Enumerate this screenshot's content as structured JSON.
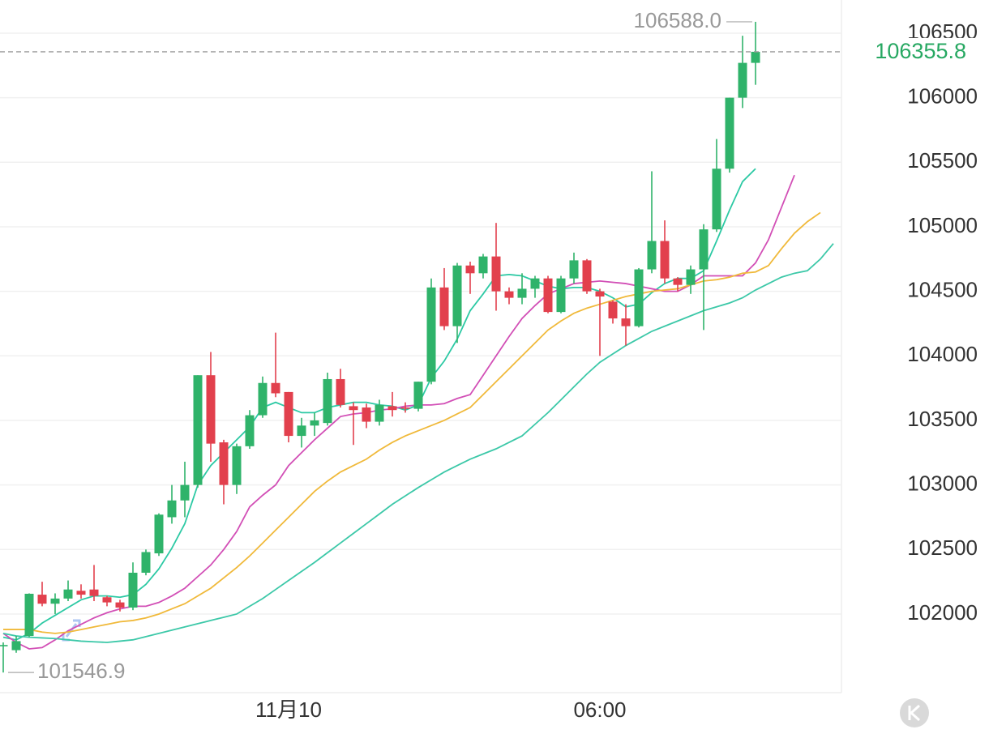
{
  "chart_data": {
    "type": "candlestick",
    "categories": [
      null,
      null,
      null,
      null,
      null,
      null,
      null,
      null,
      null,
      null,
      null,
      null,
      null,
      null,
      null,
      null,
      null,
      null,
      null,
      null,
      null,
      null,
      "11月10",
      null,
      null,
      null,
      null,
      null,
      null,
      null,
      null,
      null,
      null,
      null,
      null,
      null,
      null,
      null,
      null,
      null,
      null,
      null,
      null,
      null,
      null,
      null,
      "06:00",
      null,
      null,
      null,
      null,
      null,
      null,
      null,
      null,
      null,
      null,
      null,
      null,
      null,
      null,
      null,
      null,
      null,
      null
    ],
    "candles": {
      "open": [
        101750,
        101720,
        101830,
        102150,
        102080,
        102120,
        102180,
        102190,
        102130,
        102090,
        102050,
        102320,
        102470,
        102750,
        102880,
        103000,
        103850,
        103330,
        103000,
        103300,
        103540,
        103790,
        103720,
        103380,
        103460,
        103480,
        103820,
        103610,
        103600,
        103490,
        103610,
        103600,
        103590,
        103800,
        104530,
        104230,
        104700,
        104640,
        104770,
        104500,
        104450,
        104520,
        104600,
        104340,
        104600,
        104740,
        104500,
        104420,
        104290,
        104230,
        104670,
        104890,
        104600,
        104550,
        104670,
        104980,
        105450,
        106000,
        106270,
        null,
        null,
        null,
        null,
        null,
        null
      ],
      "high": [
        101780,
        101830,
        102160,
        102250,
        102160,
        102260,
        102230,
        102380,
        102140,
        102110,
        102400,
        102500,
        102780,
        103000,
        103180,
        103850,
        104030,
        103350,
        103320,
        103580,
        103840,
        104180,
        103720,
        103520,
        103560,
        103870,
        103900,
        103640,
        103630,
        103660,
        103720,
        103640,
        103800,
        104600,
        104680,
        104720,
        104730,
        104790,
        105030,
        104530,
        104640,
        104620,
        104620,
        104620,
        104800,
        104750,
        104520,
        104430,
        104400,
        104680,
        105430,
        105050,
        104610,
        104700,
        105020,
        105680,
        106000,
        106480,
        106588,
        null,
        null,
        null,
        null,
        null,
        null
      ],
      "low": [
        101546.9,
        101700,
        101820,
        102060,
        102000,
        102100,
        102120,
        102100,
        102060,
        102020,
        102030,
        102300,
        102450,
        102700,
        102750,
        102980,
        103180,
        102850,
        102930,
        103280,
        103520,
        103680,
        103330,
        103290,
        103380,
        103460,
        103600,
        103310,
        103440,
        103460,
        103530,
        103560,
        103570,
        103780,
        104200,
        104100,
        104480,
        104600,
        104350,
        104400,
        104400,
        104450,
        104330,
        104330,
        104560,
        104480,
        104000,
        104250,
        104080,
        104220,
        104640,
        104560,
        104500,
        104480,
        104200,
        104960,
        105420,
        105920,
        106100,
        null,
        null,
        null,
        null,
        null,
        null
      ],
      "close": [
        101760,
        101790,
        102157,
        102080,
        102120,
        102190,
        102150,
        102140,
        102090,
        102050,
        102320,
        102480,
        102770,
        102880,
        103000,
        103850,
        103320,
        103000,
        103300,
        103540,
        103790,
        103710,
        103380,
        103460,
        103500,
        103820,
        103620,
        103580,
        103490,
        103620,
        103580,
        103590,
        103800,
        104530,
        104230,
        104700,
        104640,
        104770,
        104500,
        104450,
        104520,
        104600,
        104340,
        104600,
        104740,
        104500,
        104460,
        104290,
        104230,
        104670,
        104890,
        104600,
        104550,
        104670,
        104980,
        105450,
        106000,
        106270,
        106355.8,
        null,
        null,
        null,
        null,
        null,
        null
      ]
    },
    "up_color": "#2fb36a",
    "down_color": "#e2404d",
    "series": [
      {
        "color": "#2cc9a4",
        "values": [
          101820,
          101800,
          101850,
          101930,
          101990,
          102050,
          102110,
          102140,
          102140,
          102130,
          102150,
          102230,
          102350,
          102510,
          102700,
          103000,
          103150,
          103250,
          103350,
          103450,
          103600,
          103640,
          103600,
          103560,
          103560,
          103600,
          103620,
          103640,
          103640,
          103620,
          103610,
          103580,
          103620,
          103830,
          103960,
          104130,
          104350,
          104480,
          104620,
          104630,
          104620,
          104580,
          104540,
          104520,
          104530,
          104530,
          104500,
          104450,
          104380,
          104400,
          104490,
          104560,
          104600,
          104600,
          104660,
          104890,
          105130,
          105350,
          105450,
          null,
          null,
          null,
          null,
          null,
          null
        ]
      },
      {
        "color": "#d24fb6",
        "values": [
          101850,
          101780,
          101730,
          101740,
          101800,
          101870,
          101920,
          101970,
          102010,
          102040,
          102060,
          102060,
          102090,
          102140,
          102200,
          102290,
          102380,
          102500,
          102640,
          102830,
          102920,
          103000,
          103150,
          103250,
          103350,
          103440,
          103530,
          103550,
          103560,
          103580,
          103590,
          103610,
          103620,
          103620,
          103630,
          103670,
          103700,
          103850,
          104000,
          104150,
          104290,
          104390,
          104480,
          104520,
          104560,
          104570,
          104580,
          104570,
          104560,
          104540,
          104520,
          104500,
          104500,
          104550,
          104620,
          104620,
          104620,
          104620,
          104720,
          104900,
          105150,
          105400,
          null,
          null,
          null
        ]
      },
      {
        "color": "#f0b93a",
        "values": [
          101880,
          101880,
          101880,
          101860,
          101850,
          101860,
          101880,
          101900,
          101920,
          101940,
          101950,
          101970,
          102000,
          102040,
          102080,
          102140,
          102200,
          102280,
          102360,
          102450,
          102550,
          102650,
          102750,
          102850,
          102950,
          103030,
          103100,
          103150,
          103200,
          103270,
          103330,
          103380,
          103420,
          103460,
          103500,
          103550,
          103600,
          103700,
          103800,
          103900,
          104000,
          104100,
          104200,
          104270,
          104330,
          104370,
          104400,
          104430,
          104460,
          104480,
          104500,
          104510,
          104520,
          104550,
          104580,
          104590,
          104610,
          104640,
          104650,
          104700,
          104830,
          104950,
          105040,
          105110,
          null
        ]
      },
      {
        "color": "#3cc8a8",
        "values": [
          101850,
          101830,
          101820,
          101815,
          101810,
          101800,
          101790,
          101785,
          101780,
          101790,
          101800,
          101825,
          101850,
          101875,
          101900,
          101925,
          101950,
          101975,
          102000,
          102060,
          102120,
          102190,
          102260,
          102330,
          102400,
          102475,
          102550,
          102625,
          102700,
          102775,
          102850,
          102915,
          102980,
          103040,
          103100,
          103150,
          103200,
          103240,
          103280,
          103330,
          103380,
          103470,
          103560,
          103660,
          103760,
          103860,
          103950,
          104015,
          104080,
          104135,
          104190,
          104230,
          104270,
          104310,
          104350,
          104380,
          104410,
          104450,
          104510,
          104560,
          104610,
          104640,
          104660,
          104750,
          104870
        ]
      }
    ],
    "high_label": {
      "value": 106588,
      "label": "106588.0"
    },
    "low_label": {
      "value": 101546.9,
      "label": "101546.9"
    },
    "last_price": 106355.8,
    "ylim": [
      101391,
      106757
    ],
    "yticks": [
      102000,
      102500,
      103000,
      103500,
      104000,
      104500,
      105000,
      105500,
      106000,
      106500
    ],
    "grid": true
  }
}
